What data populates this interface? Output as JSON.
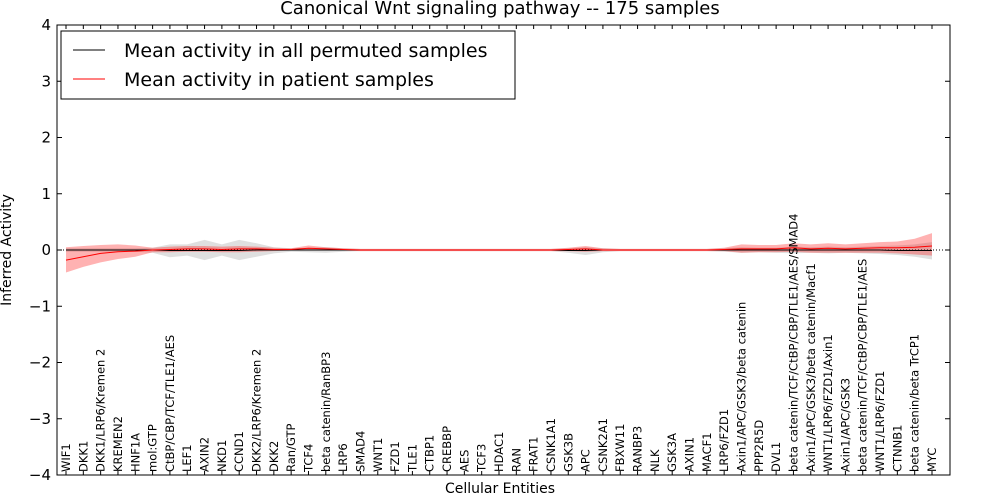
{
  "chart_data": {
    "type": "line",
    "title": "Canonical Wnt signaling pathway -- 175 samples",
    "xlabel": "Cellular Entities",
    "ylabel": "Inferred Activity",
    "ylim": [
      -4,
      4
    ],
    "yticks": [
      -4,
      -3,
      -2,
      -1,
      0,
      1,
      2,
      3,
      4
    ],
    "ytick_labels": [
      "−4",
      "−3",
      "−2",
      "−1",
      "0",
      "1",
      "2",
      "3",
      "4"
    ],
    "legend_position": "top-left",
    "grid": false,
    "categories": [
      "WIF1",
      "DKK1",
      "DKK1/LRP6/Kremen 2",
      "KREMEN2",
      "HNF1A",
      "mol:GTP",
      "CtBP/CBP/TCF/TLE1/AES",
      "LEF1",
      "AXIN2",
      "NKD1",
      "CCND1",
      "DKK2/LRP6/Kremen 2",
      "DKK2",
      "Ran/GTP",
      "TCF4",
      "beta catenin/RanBP3",
      "LRP6",
      "SMAD4",
      "WNT1",
      "FZD1",
      "TLE1",
      "CTBP1",
      "CREBBP",
      "AES",
      "TCF3",
      "HDAC1",
      "RAN",
      "FRAT1",
      "CSNK1A1",
      "GSK3B",
      "APC",
      "CSNK2A1",
      "FBXW11",
      "RANBP3",
      "NLK",
      "GSK3A",
      "AXIN1",
      "MACF1",
      "LRP6/FZD1",
      "Axin1/APC/GSK3/beta catenin",
      "PPP2R5D",
      "DVL1",
      "beta catenin/TCF/CtBP/CBP/TLE1/AES/SMAD4",
      "Axin1/APC/GSK3/beta catenin/Macf1",
      "WNT1/LRP6/FZD1/Axin1",
      "Axin1/APC/GSK3",
      "beta catenin/TCF/CtBP/CBP/TLE1/AES",
      "WNT1/LRP6/FZD1",
      "CTNNB1",
      "beta catenin/beta TrCP1",
      "MYC"
    ],
    "series": [
      {
        "name": "Mean activity in all permuted samples",
        "color": "#000000",
        "values": [
          0.0,
          0.0,
          0.0,
          0.0,
          0.0,
          0.0,
          -0.01,
          -0.01,
          -0.01,
          -0.01,
          -0.01,
          0.0,
          0.0,
          0.0,
          0.0,
          0.0,
          0.0,
          0.0,
          0.0,
          0.0,
          0.0,
          0.0,
          0.0,
          0.0,
          0.0,
          0.0,
          0.0,
          0.0,
          0.0,
          -0.01,
          -0.01,
          0.0,
          0.0,
          0.0,
          0.0,
          0.0,
          0.0,
          0.0,
          0.0,
          0.0,
          0.0,
          0.0,
          0.0,
          0.0,
          0.0,
          0.0,
          0.0,
          0.0,
          -0.01,
          -0.01,
          -0.01
        ],
        "band_upper": [
          0.03,
          0.03,
          0.03,
          0.03,
          0.03,
          0.04,
          0.1,
          0.1,
          0.18,
          0.1,
          0.18,
          0.12,
          0.05,
          0.03,
          0.04,
          0.05,
          0.03,
          0.02,
          0.02,
          0.02,
          0.02,
          0.02,
          0.02,
          0.02,
          0.02,
          0.02,
          0.02,
          0.02,
          0.02,
          0.03,
          0.05,
          0.03,
          0.02,
          0.02,
          0.02,
          0.02,
          0.02,
          0.02,
          0.03,
          0.05,
          0.04,
          0.04,
          0.06,
          0.05,
          0.06,
          0.05,
          0.06,
          0.07,
          0.08,
          0.1,
          0.14
        ],
        "band_lower": [
          -0.03,
          -0.03,
          -0.03,
          -0.03,
          -0.03,
          -0.05,
          -0.13,
          -0.1,
          -0.18,
          -0.1,
          -0.18,
          -0.12,
          -0.06,
          -0.03,
          -0.04,
          -0.05,
          -0.03,
          -0.02,
          -0.02,
          -0.02,
          -0.02,
          -0.02,
          -0.02,
          -0.02,
          -0.02,
          -0.02,
          -0.02,
          -0.02,
          -0.02,
          -0.05,
          -0.09,
          -0.04,
          -0.02,
          -0.02,
          -0.02,
          -0.02,
          -0.02,
          -0.02,
          -0.03,
          -0.05,
          -0.04,
          -0.05,
          -0.06,
          -0.05,
          -0.06,
          -0.05,
          -0.06,
          -0.07,
          -0.09,
          -0.12,
          -0.17
        ]
      },
      {
        "name": "Mean activity in patient samples",
        "color": "#ff0000",
        "values": [
          -0.18,
          -0.12,
          -0.06,
          -0.03,
          -0.02,
          0.0,
          0.01,
          0.02,
          0.02,
          0.01,
          0.02,
          0.02,
          0.01,
          0.01,
          0.03,
          0.02,
          0.01,
          0.0,
          0.0,
          0.0,
          0.0,
          0.0,
          0.0,
          0.0,
          0.0,
          0.0,
          0.0,
          0.0,
          0.0,
          0.01,
          0.02,
          0.0,
          0.0,
          0.0,
          0.0,
          0.0,
          0.0,
          0.0,
          0.01,
          0.02,
          0.02,
          0.02,
          0.04,
          0.02,
          0.03,
          0.02,
          0.03,
          0.04,
          0.04,
          0.05,
          0.07
        ],
        "band_upper": [
          0.05,
          0.07,
          0.09,
          0.1,
          0.08,
          0.04,
          0.06,
          0.07,
          0.07,
          0.06,
          0.07,
          0.06,
          0.04,
          0.03,
          0.08,
          0.05,
          0.03,
          0.02,
          0.02,
          0.02,
          0.02,
          0.02,
          0.02,
          0.02,
          0.02,
          0.02,
          0.02,
          0.02,
          0.02,
          0.04,
          0.07,
          0.03,
          0.02,
          0.02,
          0.02,
          0.02,
          0.02,
          0.02,
          0.04,
          0.1,
          0.09,
          0.09,
          0.12,
          0.1,
          0.12,
          0.1,
          0.12,
          0.14,
          0.15,
          0.2,
          0.3
        ],
        "band_lower": [
          -0.4,
          -0.3,
          -0.22,
          -0.16,
          -0.12,
          -0.04,
          -0.04,
          -0.03,
          -0.03,
          -0.04,
          -0.04,
          -0.03,
          -0.02,
          -0.01,
          -0.01,
          -0.01,
          -0.01,
          -0.02,
          -0.02,
          -0.02,
          -0.02,
          -0.02,
          -0.02,
          -0.02,
          -0.02,
          -0.02,
          -0.02,
          -0.02,
          -0.02,
          -0.02,
          -0.03,
          -0.02,
          -0.02,
          -0.02,
          -0.02,
          -0.02,
          -0.02,
          -0.02,
          -0.02,
          -0.05,
          -0.04,
          -0.04,
          -0.03,
          -0.05,
          -0.05,
          -0.05,
          -0.05,
          -0.05,
          -0.06,
          -0.08,
          -0.1
        ]
      }
    ]
  }
}
